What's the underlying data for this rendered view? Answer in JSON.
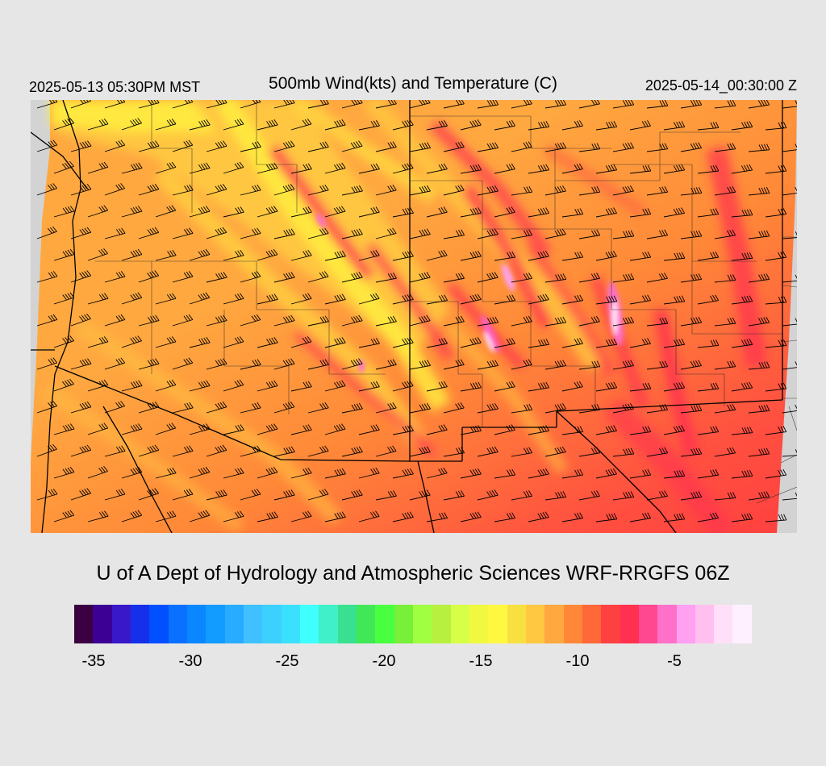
{
  "header": {
    "valid_local": "2025-05-13 05:30PM MST",
    "title": "500mb Wind(kts) and Temperature (C)",
    "valid_utc": "2025-05-14_00:30:00 Z"
  },
  "footer": {
    "credit": "U of A Dept of Hydrology and Atmospheric Sciences WRF-RRGFS 06Z"
  },
  "colorbar": {
    "unit": "C",
    "min": -36,
    "max": -1,
    "colors": [
      "#3b0042",
      "#3c0094",
      "#3818c8",
      "#1530e8",
      "#0050ff",
      "#0a70ff",
      "#0a86ff",
      "#129cff",
      "#28acff",
      "#40c0ff",
      "#3cd0ff",
      "#3ce0ff",
      "#40ffff",
      "#40f0c8",
      "#38e090",
      "#40e858",
      "#48ff40",
      "#78f038",
      "#a0ff40",
      "#b8f040",
      "#d8ff48",
      "#f0f840",
      "#fff840",
      "#f8e040",
      "#ffc840",
      "#ffa840",
      "#ff8838",
      "#ff6838",
      "#ff4040",
      "#ff3050",
      "#ff4890",
      "#ff70c8",
      "#ffa0f0",
      "#ffc0f0",
      "#ffe0f8",
      "#fff0ff"
    ],
    "tick_labels": [
      "-35",
      "-30",
      "-25",
      "-20",
      "-15",
      "-10",
      "-5"
    ],
    "tick_values": [
      -35,
      -30,
      -25,
      -20,
      -15,
      -10,
      -5
    ]
  },
  "map": {
    "region": "Arizona / New Mexico / southern Utah & Colorado / northern Mexico",
    "field": "500mb temperature (C)",
    "temperature_range": [
      -18,
      -2
    ],
    "background_color": "#d3d3d3",
    "wind_barbs": "westerly to southwesterly barbs, approx 20-40 kts"
  }
}
